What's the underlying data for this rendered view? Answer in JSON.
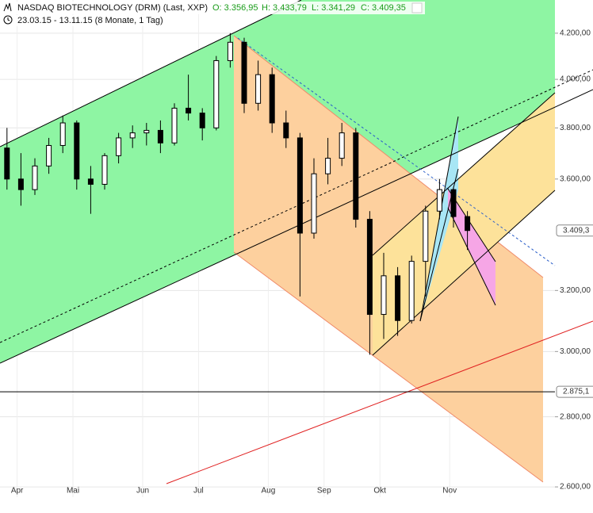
{
  "chart_data": {
    "type": "candlestick",
    "title": "NASDAQ BIOTECHNOLOGY (DRM) (Last, XXP)",
    "ohlc_labels": [
      "O: 3.356,95",
      "H: 3.433,79",
      "L: 3.341,29",
      "C: 3.409,35"
    ],
    "subtitle": "23.03.15 - 13.11.15 (8 Monate, 1 Tag)",
    "categories": [
      null,
      "Apr",
      null,
      null,
      null,
      "Mai",
      null,
      null,
      null,
      null,
      "Jun",
      null,
      null,
      null,
      "Jul",
      null,
      null,
      null,
      null,
      "Aug",
      null,
      null,
      null,
      "Sep",
      null,
      null,
      null,
      "Okt",
      null,
      null,
      null,
      null,
      "Nov",
      null
    ],
    "open": [
      3720,
      3600,
      3560,
      3650,
      3730,
      3820,
      3600,
      3580,
      3690,
      3760,
      3780,
      3790,
      3740,
      3880,
      3860,
      3800,
      4080,
      4160,
      3900,
      4020,
      3820,
      3760,
      3400,
      3620,
      3680,
      3780,
      3450,
      3120,
      3250,
      3100,
      3300,
      3480,
      3560,
      3460
    ],
    "high": [
      3800,
      3700,
      3680,
      3760,
      3850,
      3830,
      3650,
      3700,
      3780,
      3810,
      3820,
      3830,
      3900,
      4020,
      3880,
      4100,
      4200,
      4180,
      4080,
      4050,
      3870,
      3780,
      3680,
      3760,
      3820,
      3800,
      3480,
      3330,
      3280,
      3320,
      3500,
      3600,
      3570,
      3480
    ],
    "low": [
      3560,
      3500,
      3540,
      3620,
      3700,
      3560,
      3470,
      3560,
      3660,
      3720,
      3730,
      3700,
      3730,
      3830,
      3750,
      3790,
      4050,
      3860,
      3870,
      3780,
      3720,
      3180,
      3380,
      3580,
      3650,
      3420,
      2990,
      3040,
      3050,
      3090,
      3180,
      3450,
      3420,
      3340
    ],
    "close": [
      3600,
      3560,
      3650,
      3730,
      3820,
      3600,
      3580,
      3690,
      3760,
      3780,
      3790,
      3740,
      3880,
      3860,
      3800,
      4080,
      4160,
      3900,
      4020,
      3820,
      3760,
      3400,
      3620,
      3680,
      3780,
      3450,
      3120,
      3250,
      3100,
      3300,
      3480,
      3560,
      3460,
      3409.35
    ],
    "color": "#000000",
    "log_scale": true,
    "grid": true,
    "ylim": [
      2572,
      4350
    ],
    "yticks": [
      {
        "value": 2600,
        "label": "2.600,00"
      },
      {
        "value": 2800,
        "label": "2.800,00"
      },
      {
        "value": 3000,
        "label": "3.000,00"
      },
      {
        "value": 3200,
        "label": "3.200,00"
      },
      {
        "value": 3600,
        "label": "3.600,00"
      },
      {
        "value": 3800,
        "label": "3.800,00"
      },
      {
        "value": 4000,
        "label": "4.000,00"
      },
      {
        "value": 4200,
        "label": "4.200,00"
      }
    ],
    "last_price": {
      "value": 3409.35,
      "label": "3.409,3"
    },
    "hline": {
      "value": 2875.1,
      "label": "2.875,1"
    }
  }
}
